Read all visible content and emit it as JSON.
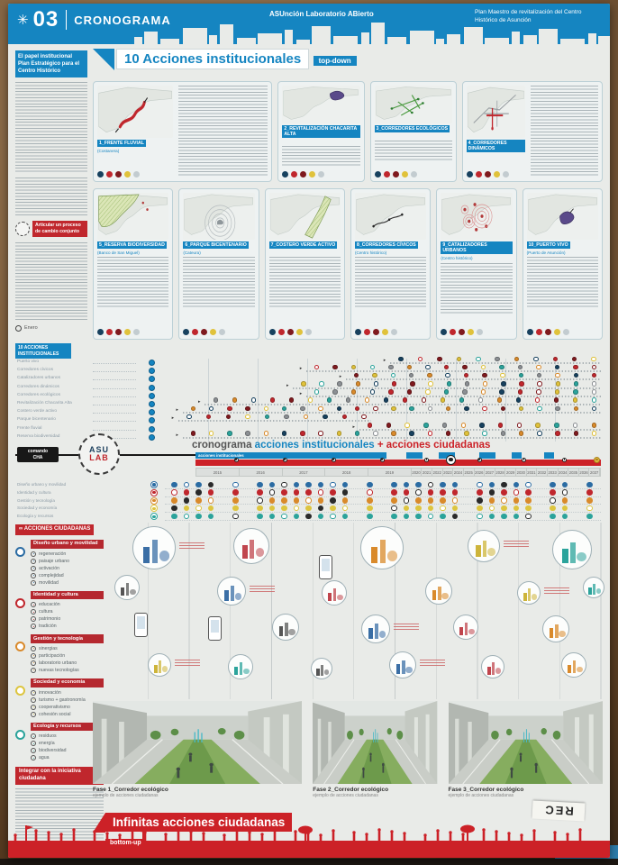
{
  "header": {
    "number": "03",
    "title": "CRONOGRAMA",
    "center_title": "ASUnción Laboratorio ABierto",
    "right_title": "Plan Maestro de revitalización del Centro Histórico de Asunción"
  },
  "sidebar": {
    "intro_title": "El papel institucional Plan Estratégico para el Centro Histórico",
    "badge": "Articular un proceso de cambio conjunto",
    "note": "Enero"
  },
  "institutional": {
    "title": "10 Acciones institucionales",
    "subtitle": "top-down",
    "cards": [
      {
        "label": "1_FRENTE FLUVIAL",
        "sub": "(Costanera)"
      },
      {
        "label": "2_REVITALIZACIÓN CHACARITA ALTA",
        "sub": ""
      },
      {
        "label": "3_CORREDORES ECOLÓGICOS",
        "sub": ""
      },
      {
        "label": "4_CORREDORES DINÁMICOS",
        "sub": ""
      },
      {
        "label": "5_RESERVA BIODIVERSIDAD",
        "sub": "(Banco de San Miguel)"
      },
      {
        "label": "6_PARQUE BICENTENARIO",
        "sub": "(Cateura)"
      },
      {
        "label": "7_COSTERO VERDE ACTIVO",
        "sub": ""
      },
      {
        "label": "8_CORREDORES CÍVICOS",
        "sub": "(Centro histórico)"
      },
      {
        "label": "9_CATALIZADORES URBANOS",
        "sub": "(Centro histórico)"
      },
      {
        "label": "10_PUERTO VIVO",
        "sub": "(Puerto de Asunción)"
      }
    ]
  },
  "gantt": {
    "label": "10 ACCIONES INSTITUCIONALES",
    "rows": [
      {
        "label": "Puerto vivo",
        "start": 52,
        "end": 100
      },
      {
        "label": "Corredores cívicos",
        "start": 33,
        "end": 100
      },
      {
        "label": "Catalizadores urbanos",
        "start": 42,
        "end": 100
      },
      {
        "label": "Corredores dinámicos",
        "start": 30,
        "end": 100
      },
      {
        "label": "Corredores ecológicos",
        "start": 33,
        "end": 100
      },
      {
        "label": "Revitalización Chacarita Alta",
        "start": 10,
        "end": 100
      },
      {
        "label": "Costero verde activo",
        "start": 5,
        "end": 100
      },
      {
        "label": "Parque bicentenario",
        "start": 4,
        "end": 48
      },
      {
        "label": "Frente fluvial",
        "start": 45,
        "end": 100
      },
      {
        "label": "Reserva biodiversidad",
        "start": 5,
        "end": 100
      }
    ]
  },
  "cronograma": {
    "title_main": "cronograma",
    "title_blue": "acciones institucionales",
    "title_red": "+ acciones ciudadanas",
    "command_line1": "comando",
    "command_line2": "CHA",
    "stamp_top": "ASU",
    "stamp_bottom": "LAB",
    "bar_blue_label": "acciones institucionales",
    "years": [
      "2015",
      "2016",
      "2017",
      "2018",
      "2019",
      "2020",
      "2021",
      "2022",
      "2023",
      "2024",
      "2025",
      "2026",
      "2027",
      "2028",
      "2029",
      "2030",
      "2031",
      "2032",
      "2033",
      "2034",
      "2035",
      "2036",
      "2037"
    ]
  },
  "categories": [
    {
      "name": "Diseño urbano y movilidad",
      "color": "#2b6ca3",
      "items": [
        "regeneración",
        "paisaje urbano",
        "activación",
        "complejidad",
        "movilidad"
      ]
    },
    {
      "name": "Identidad y cultura",
      "color": "#c0272d",
      "items": [
        "educación",
        "cultura",
        "patrimonio",
        "tradición"
      ]
    },
    {
      "name": "Gestión y tecnología",
      "color": "#d98a2b",
      "items": [
        "sinergias",
        "participación",
        "laboratorio urbano",
        "nuevas tecnologías"
      ]
    },
    {
      "name": "Sociedad y economía",
      "color": "#ddc53f",
      "items": [
        "innovación",
        "turismo + gastronomía",
        "cooperativismo",
        "cohesión social"
      ]
    },
    {
      "name": "Ecología y recursos",
      "color": "#2ba39b",
      "items": [
        "residuos",
        "energía",
        "biodiversidad",
        "agua"
      ]
    }
  ],
  "ciudadanas": {
    "badge": "∞ ACCIONES CIUDADANAS",
    "integrate_title": "Integrar con la iniciativa ciudadana"
  },
  "fases": [
    {
      "title": "Fase 1_Corredor ecológico",
      "sub": "ejemplo de acciones ciudadanas"
    },
    {
      "title": "Fase 2_Corredor ecológico",
      "sub": "ejemplo de acciones ciudadanas"
    },
    {
      "title": "Fase 3_Corredor ecológico",
      "sub": "ejemplo de acciones ciudadanas"
    }
  ],
  "footer": {
    "title": "Infinitas acciones ciudadanas",
    "subtitle": "bottom-up",
    "sticker": "REC"
  }
}
